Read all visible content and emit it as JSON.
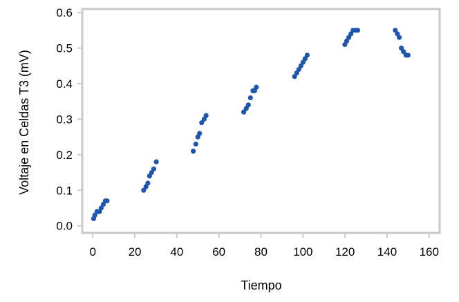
{
  "chart_data": {
    "type": "scatter",
    "title": "",
    "xlabel": "Tiempo",
    "ylabel": "Voltaje en Celdas T3 (mV)",
    "xlim": [
      -5,
      165
    ],
    "ylim": [
      -0.02,
      0.61
    ],
    "x_ticks": [
      0,
      20,
      40,
      60,
      80,
      100,
      120,
      140,
      160
    ],
    "y_ticks": [
      0.0,
      0.1,
      0.2,
      0.3,
      0.4,
      0.5,
      0.6
    ],
    "x_tick_labels": [
      "0",
      "20",
      "40",
      "60",
      "80",
      "100",
      "120",
      "140",
      "160"
    ],
    "y_tick_labels": [
      "0.0",
      "0.1",
      "0.2",
      "0.3",
      "0.4",
      "0.5",
      "0.6"
    ],
    "grid": false,
    "legend": false,
    "marker_color": "#1f56a8",
    "frame_color": "#c8c8c8",
    "series": [
      {
        "points": [
          [
            0.4,
            0.02
          ],
          [
            1.0,
            0.03
          ],
          [
            2.0,
            0.04
          ],
          [
            3.2,
            0.04
          ],
          [
            4.0,
            0.05
          ],
          [
            5.0,
            0.06
          ],
          [
            6.0,
            0.07
          ],
          [
            6.8,
            0.07
          ],
          [
            24.2,
            0.1
          ],
          [
            25.3,
            0.11
          ],
          [
            26.2,
            0.12
          ],
          [
            27.0,
            0.14
          ],
          [
            28.0,
            0.15
          ],
          [
            29.0,
            0.16
          ],
          [
            30.2,
            0.18
          ],
          [
            47.8,
            0.21
          ],
          [
            49.0,
            0.23
          ],
          [
            50.0,
            0.25
          ],
          [
            50.8,
            0.26
          ],
          [
            51.8,
            0.29
          ],
          [
            53.0,
            0.3
          ],
          [
            53.9,
            0.31
          ],
          [
            71.8,
            0.32
          ],
          [
            73.0,
            0.33
          ],
          [
            74.0,
            0.34
          ],
          [
            75.0,
            0.36
          ],
          [
            76.2,
            0.38
          ],
          [
            77.0,
            0.38
          ],
          [
            77.8,
            0.39
          ],
          [
            96.0,
            0.42
          ],
          [
            97.0,
            0.43
          ],
          [
            98.0,
            0.44
          ],
          [
            99.0,
            0.45
          ],
          [
            100.0,
            0.46
          ],
          [
            101.0,
            0.47
          ],
          [
            102.0,
            0.48
          ],
          [
            119.9,
            0.51
          ],
          [
            120.8,
            0.52
          ],
          [
            121.8,
            0.53
          ],
          [
            122.8,
            0.54
          ],
          [
            123.8,
            0.55
          ],
          [
            125.0,
            0.55
          ],
          [
            126.0,
            0.55
          ],
          [
            143.9,
            0.55
          ],
          [
            144.9,
            0.54
          ],
          [
            145.8,
            0.53
          ],
          [
            146.8,
            0.5
          ],
          [
            147.8,
            0.49
          ],
          [
            149.0,
            0.48
          ],
          [
            150.0,
            0.48
          ]
        ]
      }
    ]
  }
}
